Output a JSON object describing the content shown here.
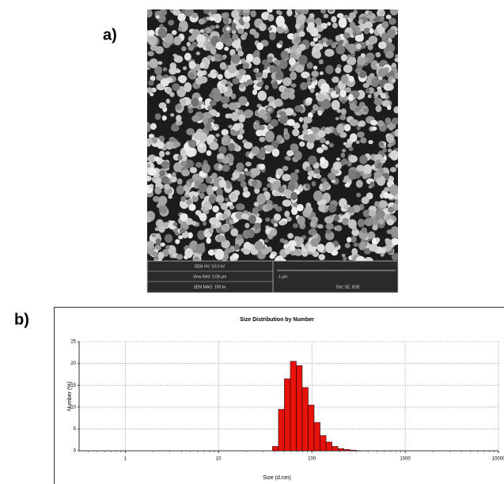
{
  "panel_a": {
    "label": "a)",
    "sem_info": {
      "hv": "SEM HV: 10.0 kV",
      "view_field": "View field: 2.08 µm",
      "mag": "SEM MAG: 100 kx",
      "scale": "1 µm",
      "detector": "Det: SE, BSE"
    }
  },
  "panel_b": {
    "label": "b)"
  },
  "chart_data": {
    "type": "histogram",
    "title": "Size Distribution by Number",
    "x_label": "Size (d.nm)",
    "y_label": "Number (%)",
    "bins": [
      37.8,
      43.8,
      50.7,
      58.8,
      68.1,
      78.8,
      91.3,
      105.7,
      122.4,
      141.8,
      164.2,
      190.1,
      220.2,
      255.0,
      295.3,
      342.0
    ],
    "values": [
      1.0,
      9.5,
      16.5,
      20.5,
      19.5,
      14.5,
      10.5,
      6.5,
      3.5,
      2.0,
      1.0,
      0.5,
      0.3,
      0.15,
      0.05
    ],
    "color": "#e8120c",
    "xlog": true,
    "xlim": [
      0.32,
      10000
    ],
    "xticks": [
      1,
      10,
      100,
      1000,
      10000
    ],
    "ylim": [
      0,
      25
    ],
    "yticks": [
      0,
      5,
      10,
      15,
      20,
      25
    ],
    "grid": true
  }
}
